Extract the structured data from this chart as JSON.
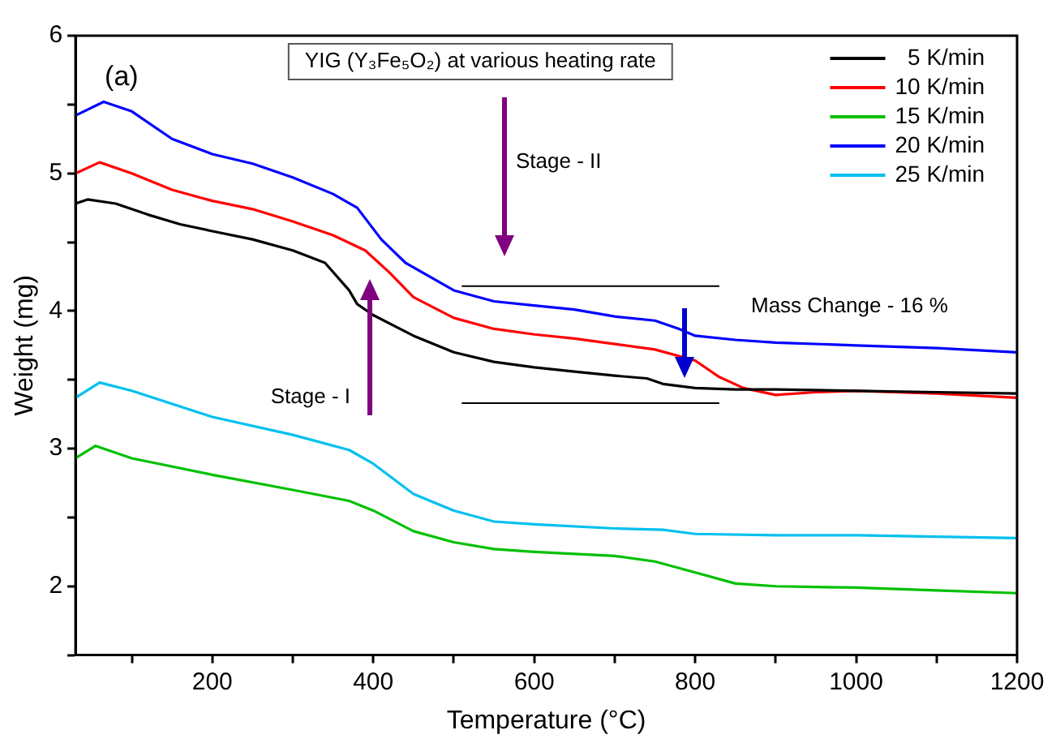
{
  "chart_data": {
    "type": "line",
    "title": "YIG (Y₃Fe₅O₂) at various heating rate",
    "xlabel": "Temperature (°C)",
    "ylabel": "Weight (mg)",
    "xlim": [
      30,
      1200
    ],
    "ylim": [
      1.5,
      6
    ],
    "xticks": [
      {
        "value": 100,
        "label": null
      },
      200,
      {
        "value": 300,
        "label": null
      },
      400,
      {
        "value": 500,
        "label": null
      },
      600,
      {
        "value": 700,
        "label": null
      },
      800,
      {
        "value": 900,
        "label": null
      },
      1000,
      {
        "value": 1100,
        "label": null
      },
      1200
    ],
    "yticks": [
      {
        "value": 1.5,
        "label": null
      },
      2,
      {
        "value": 2.5,
        "label": null
      },
      3,
      {
        "value": 3.5,
        "label": null
      },
      4,
      {
        "value": 4.5,
        "label": null
      },
      5,
      {
        "value": 5.5,
        "label": null
      },
      6
    ],
    "grid": false,
    "legend": "top right",
    "marker": "none",
    "line_style": "solid",
    "annotations": [
      "(a)",
      "Stage - I",
      "Stage - II",
      "Mass Change - 16 %"
    ],
    "series": [
      {
        "name": "5 K/min",
        "color": "#000000",
        "x": [
          30,
          45,
          80,
          120,
          160,
          200,
          250,
          300,
          340,
          370,
          380,
          400,
          450,
          500,
          550,
          600,
          650,
          700,
          740,
          760,
          800,
          850,
          900,
          1000,
          1100,
          1200
        ],
        "values": [
          4.78,
          4.81,
          4.78,
          4.7,
          4.63,
          4.58,
          4.52,
          4.44,
          4.35,
          4.15,
          4.05,
          3.97,
          3.82,
          3.7,
          3.63,
          3.59,
          3.56,
          3.53,
          3.51,
          3.47,
          3.44,
          3.43,
          3.43,
          3.42,
          3.41,
          3.4
        ]
      },
      {
        "name": "10 K/min",
        "color": "#ff0000",
        "x": [
          30,
          60,
          100,
          150,
          200,
          250,
          300,
          350,
          390,
          420,
          450,
          500,
          550,
          600,
          650,
          700,
          750,
          800,
          830,
          860,
          900,
          950,
          1000,
          1100,
          1200
        ],
        "values": [
          5.0,
          5.08,
          5.0,
          4.88,
          4.8,
          4.74,
          4.65,
          4.55,
          4.44,
          4.28,
          4.1,
          3.95,
          3.87,
          3.83,
          3.8,
          3.76,
          3.72,
          3.64,
          3.52,
          3.44,
          3.39,
          3.41,
          3.42,
          3.4,
          3.37
        ]
      },
      {
        "name": "15 K/min",
        "color": "#00c000",
        "x": [
          30,
          55,
          100,
          200,
          300,
          370,
          400,
          450,
          500,
          550,
          600,
          700,
          750,
          800,
          850,
          900,
          1000,
          1100,
          1200
        ],
        "values": [
          2.93,
          3.02,
          2.93,
          2.81,
          2.7,
          2.62,
          2.55,
          2.4,
          2.32,
          2.27,
          2.25,
          2.22,
          2.18,
          2.1,
          2.02,
          2.0,
          1.99,
          1.97,
          1.95
        ]
      },
      {
        "name": "20 K/min",
        "color": "#0000ff",
        "x": [
          30,
          65,
          100,
          150,
          200,
          250,
          300,
          350,
          380,
          410,
          440,
          500,
          550,
          600,
          650,
          700,
          750,
          780,
          800,
          850,
          900,
          1000,
          1100,
          1200
        ],
        "values": [
          5.42,
          5.52,
          5.45,
          5.25,
          5.14,
          5.07,
          4.97,
          4.85,
          4.75,
          4.52,
          4.35,
          4.15,
          4.07,
          4.04,
          4.01,
          3.96,
          3.93,
          3.87,
          3.82,
          3.79,
          3.77,
          3.75,
          3.73,
          3.7
        ]
      },
      {
        "name": "25 K/min",
        "color": "#00c0f0",
        "x": [
          30,
          60,
          100,
          200,
          300,
          370,
          400,
          450,
          500,
          550,
          600,
          700,
          760,
          800,
          900,
          1000,
          1100,
          1200
        ],
        "values": [
          3.37,
          3.48,
          3.42,
          3.23,
          3.1,
          2.99,
          2.89,
          2.67,
          2.55,
          2.47,
          2.45,
          2.42,
          2.41,
          2.38,
          2.37,
          2.37,
          2.36,
          2.35
        ]
      },
      {
        "type": "line",
        "color": "#000000",
        "x": [
          510,
          830
        ],
        "values": [
          4.18,
          4.18
        ]
      },
      {
        "type": "line",
        "color": "#000000",
        "x": [
          510,
          830
        ],
        "values": [
          3.33,
          3.33
        ]
      }
    ]
  }
}
